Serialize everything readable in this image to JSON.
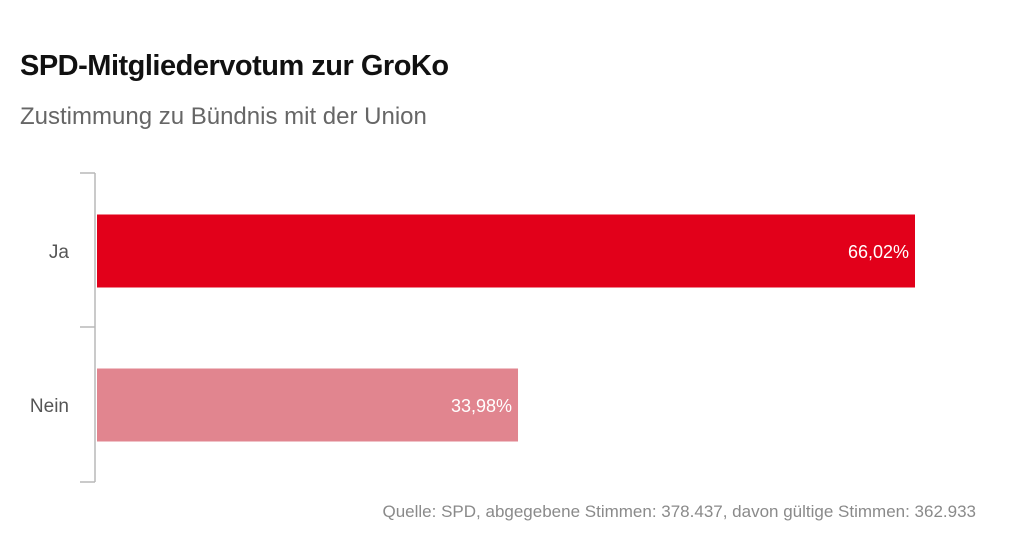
{
  "header": {
    "title": "SPD-Mitgliedervotum zur GroKo",
    "subtitle": "Zustimmung zu Bündnis mit der Union"
  },
  "footer": {
    "source": "Quelle: SPD, abgegebene Stimmen: 378.437, davon gültige Stimmen: 362.933"
  },
  "chart_data": {
    "type": "bar",
    "orientation": "horizontal",
    "title": "SPD-Mitgliedervotum zur GroKo",
    "subtitle": "Zustimmung zu Bündnis mit der Union",
    "categories": [
      "Ja",
      "Nein"
    ],
    "values": [
      66.02,
      33.98
    ],
    "value_labels": [
      "66,02%",
      "33,98%"
    ],
    "colors": [
      "#e2001a",
      "#e1858f"
    ],
    "xlim": [
      0,
      66.02
    ],
    "grid": false,
    "legend": "none"
  }
}
